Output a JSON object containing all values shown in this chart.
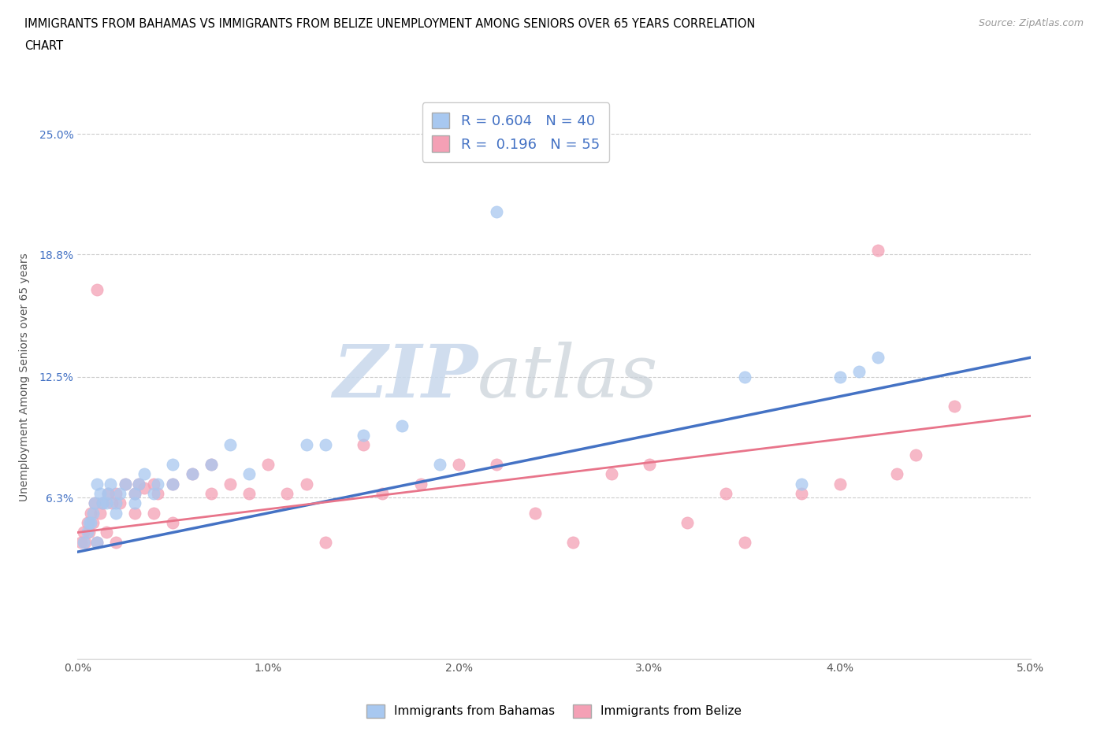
{
  "title_line1": "IMMIGRANTS FROM BAHAMAS VS IMMIGRANTS FROM BELIZE UNEMPLOYMENT AMONG SENIORS OVER 65 YEARS CORRELATION",
  "title_line2": "CHART",
  "source": "Source: ZipAtlas.com",
  "ylabel": "Unemployment Among Seniors over 65 years",
  "xlim": [
    0.0,
    0.05
  ],
  "ylim": [
    -0.02,
    0.27
  ],
  "yticks": [
    0.063,
    0.125,
    0.188,
    0.25
  ],
  "ytick_labels": [
    "6.3%",
    "12.5%",
    "18.8%",
    "25.0%"
  ],
  "xtick_labels": [
    "0.0%",
    "1.0%",
    "2.0%",
    "3.0%",
    "4.0%",
    "5.0%"
  ],
  "xticks": [
    0.0,
    0.01,
    0.02,
    0.03,
    0.04,
    0.05
  ],
  "bahamas_color": "#A8C8F0",
  "belize_color": "#F4A0B5",
  "bahamas_line_color": "#4472C4",
  "belize_line_color": "#E8748A",
  "legend_label_1": "R = 0.604   N = 40",
  "legend_label_2": "R =  0.196   N = 55",
  "legend_bottom_1": "Immigrants from Bahamas",
  "legend_bottom_2": "Immigrants from Belize",
  "R_bahamas": 0.604,
  "N_bahamas": 40,
  "R_belize": 0.196,
  "N_belize": 55,
  "watermark_zip": "ZIP",
  "watermark_atlas": "atlas",
  "background_color": "#FFFFFF",
  "grid_color": "#CCCCCC",
  "bahamas_x": [
    0.0003,
    0.0005,
    0.0006,
    0.0007,
    0.0008,
    0.0009,
    0.001,
    0.001,
    0.0012,
    0.0013,
    0.0015,
    0.0016,
    0.0017,
    0.002,
    0.002,
    0.0022,
    0.0025,
    0.003,
    0.003,
    0.0032,
    0.0035,
    0.004,
    0.0042,
    0.005,
    0.005,
    0.006,
    0.007,
    0.008,
    0.009,
    0.012,
    0.013,
    0.015,
    0.017,
    0.019,
    0.022,
    0.035,
    0.038,
    0.04,
    0.041,
    0.042
  ],
  "bahamas_y": [
    0.04,
    0.045,
    0.05,
    0.05,
    0.055,
    0.06,
    0.04,
    0.07,
    0.065,
    0.06,
    0.06,
    0.065,
    0.07,
    0.055,
    0.06,
    0.065,
    0.07,
    0.06,
    0.065,
    0.07,
    0.075,
    0.065,
    0.07,
    0.07,
    0.08,
    0.075,
    0.08,
    0.09,
    0.075,
    0.09,
    0.09,
    0.095,
    0.1,
    0.08,
    0.21,
    0.125,
    0.07,
    0.125,
    0.128,
    0.135
  ],
  "belize_x": [
    0.0002,
    0.0003,
    0.0004,
    0.0005,
    0.0006,
    0.0007,
    0.0008,
    0.0009,
    0.001,
    0.001,
    0.0012,
    0.0013,
    0.0015,
    0.0016,
    0.0018,
    0.002,
    0.002,
    0.0022,
    0.0025,
    0.003,
    0.003,
    0.0032,
    0.0035,
    0.004,
    0.004,
    0.0042,
    0.005,
    0.005,
    0.006,
    0.007,
    0.007,
    0.008,
    0.009,
    0.01,
    0.011,
    0.012,
    0.013,
    0.015,
    0.016,
    0.018,
    0.02,
    0.022,
    0.024,
    0.026,
    0.028,
    0.03,
    0.032,
    0.034,
    0.035,
    0.038,
    0.04,
    0.042,
    0.043,
    0.044,
    0.046
  ],
  "belize_y": [
    0.04,
    0.045,
    0.04,
    0.05,
    0.045,
    0.055,
    0.05,
    0.06,
    0.04,
    0.17,
    0.055,
    0.06,
    0.045,
    0.065,
    0.06,
    0.04,
    0.065,
    0.06,
    0.07,
    0.055,
    0.065,
    0.07,
    0.068,
    0.055,
    0.07,
    0.065,
    0.05,
    0.07,
    0.075,
    0.065,
    0.08,
    0.07,
    0.065,
    0.08,
    0.065,
    0.07,
    0.04,
    0.09,
    0.065,
    0.07,
    0.08,
    0.08,
    0.055,
    0.04,
    0.075,
    0.08,
    0.05,
    0.065,
    0.04,
    0.065,
    0.07,
    0.19,
    0.075,
    0.085,
    0.11
  ],
  "bah_trend_x0": 0.0,
  "bah_trend_y0": 0.035,
  "bah_trend_x1": 0.05,
  "bah_trend_y1": 0.135,
  "bel_trend_x0": 0.0,
  "bel_trend_y0": 0.045,
  "bel_trend_x1": 0.05,
  "bel_trend_y1": 0.105
}
